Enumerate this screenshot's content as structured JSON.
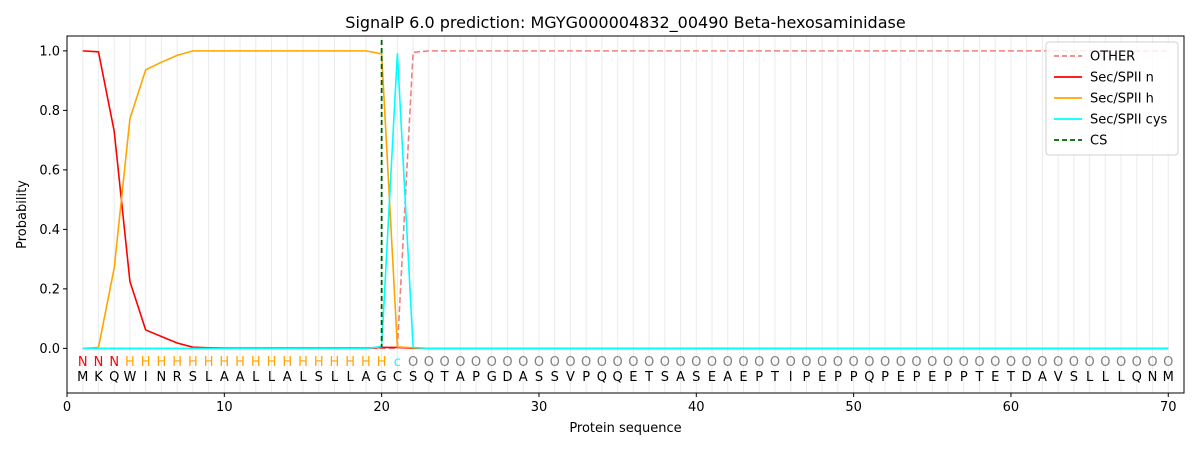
{
  "chart_data": {
    "type": "line",
    "title": "SignalP 6.0 prediction: MGYG000004832_00490 Beta-hexosaminidase",
    "xlabel": "Protein sequence",
    "ylabel": "Probability",
    "xlim": [
      0,
      71
    ],
    "ylim": [
      -0.15,
      1.05
    ],
    "xticks": [
      0,
      10,
      20,
      30,
      40,
      50,
      60,
      70
    ],
    "yticks": [
      0.0,
      0.2,
      0.4,
      0.6,
      0.8,
      1.0
    ],
    "ytick_labels": [
      "0.0",
      "0.2",
      "0.4",
      "0.6",
      "0.8",
      "1.0"
    ],
    "grid": "vertical lines at each residue",
    "legend_position": "top-right",
    "sequence": [
      "M",
      "K",
      "Q",
      "W",
      "I",
      "N",
      "R",
      "S",
      "L",
      "A",
      "A",
      "L",
      "L",
      "A",
      "L",
      "S",
      "L",
      "L",
      "A",
      "G",
      "C",
      "S",
      "Q",
      "T",
      "A",
      "P",
      "G",
      "D",
      "A",
      "S",
      "S",
      "V",
      "P",
      "Q",
      "Q",
      "E",
      "T",
      "S",
      "A",
      "S",
      "E",
      "A",
      "E",
      "P",
      "T",
      "I",
      "P",
      "E",
      "P",
      "P",
      "Q",
      "P",
      "E",
      "P",
      "E",
      "P",
      "P",
      "T",
      "E",
      "T",
      "D",
      "A",
      "V",
      "S",
      "L",
      "L",
      "L",
      "Q",
      "N",
      "M"
    ],
    "states": [
      "N",
      "N",
      "N",
      "H",
      "H",
      "H",
      "H",
      "H",
      "H",
      "H",
      "H",
      "H",
      "H",
      "H",
      "H",
      "H",
      "H",
      "H",
      "H",
      "H",
      "c",
      "O",
      "O",
      "O",
      "O",
      "O",
      "O",
      "O",
      "O",
      "O",
      "O",
      "O",
      "O",
      "O",
      "O",
      "O",
      "O",
      "O",
      "O",
      "O",
      "O",
      "O",
      "O",
      "O",
      "O",
      "O",
      "O",
      "O",
      "O",
      "O",
      "O",
      "O",
      "O",
      "O",
      "O",
      "O",
      "O",
      "O",
      "O",
      "O",
      "O",
      "O",
      "O",
      "O",
      "O",
      "O",
      "O",
      "O",
      "O",
      "O"
    ],
    "state_colors": {
      "N": "#ff0000",
      "H": "#ffa500",
      "c": "#00ffff",
      "O": "#808080"
    },
    "series": [
      {
        "name": "OTHER",
        "color": "#f08080",
        "dash": "dashed",
        "values": [
          0,
          0,
          0,
          0,
          0,
          0,
          0,
          0,
          0,
          0,
          0,
          0,
          0,
          0,
          0,
          0,
          0,
          0,
          0,
          0,
          0,
          0.995,
          1,
          1,
          1,
          1,
          1,
          1,
          1,
          1,
          1,
          1,
          1,
          1,
          1,
          1,
          1,
          1,
          1,
          1,
          1,
          1,
          1,
          1,
          1,
          1,
          1,
          1,
          1,
          1,
          1,
          1,
          1,
          1,
          1,
          1,
          1,
          1,
          1,
          1,
          1,
          1,
          1,
          1,
          1,
          1,
          1,
          1,
          1,
          1
        ]
      },
      {
        "name": "Sec/SPII n",
        "color": "#ff0000",
        "dash": "solid",
        "values": [
          1.0,
          0.997,
          0.73,
          0.225,
          0.062,
          0.04,
          0.018,
          0.004,
          0.002,
          0.001,
          0.001,
          0.001,
          0.001,
          0.001,
          0.001,
          0.001,
          0.001,
          0.001,
          0.001,
          0.003,
          0.003,
          0,
          0,
          0,
          0,
          0,
          0,
          0,
          0,
          0,
          0,
          0,
          0,
          0,
          0,
          0,
          0,
          0,
          0,
          0,
          0,
          0,
          0,
          0,
          0,
          0,
          0,
          0,
          0,
          0,
          0,
          0,
          0,
          0,
          0,
          0,
          0,
          0,
          0,
          0,
          0,
          0,
          0,
          0,
          0,
          0,
          0,
          0,
          0,
          0
        ]
      },
      {
        "name": "Sec/SPII h",
        "color": "#ffa500",
        "dash": "solid",
        "values": [
          0,
          0.003,
          0.27,
          0.772,
          0.936,
          0.962,
          0.985,
          1.0,
          1.0,
          1.0,
          1.0,
          1.0,
          1.0,
          1.0,
          1.0,
          1.0,
          1.0,
          1.0,
          1.0,
          0.99,
          0.005,
          0.002,
          0,
          0,
          0,
          0,
          0,
          0,
          0,
          0,
          0,
          0,
          0,
          0,
          0,
          0,
          0,
          0,
          0,
          0,
          0,
          0,
          0,
          0,
          0,
          0,
          0,
          0,
          0,
          0,
          0,
          0,
          0,
          0,
          0,
          0,
          0,
          0,
          0,
          0,
          0,
          0,
          0,
          0,
          0,
          0,
          0,
          0,
          0,
          0
        ]
      },
      {
        "name": "Sec/SPII cys",
        "color": "#00ffff",
        "dash": "solid",
        "values": [
          0,
          0,
          0,
          0,
          0,
          0,
          0,
          0,
          0,
          0,
          0,
          0,
          0,
          0,
          0,
          0,
          0,
          0,
          0,
          0.006,
          0.992,
          0.003,
          0,
          0,
          0,
          0,
          0,
          0,
          0,
          0,
          0,
          0,
          0,
          0,
          0,
          0,
          0,
          0,
          0,
          0,
          0,
          0,
          0,
          0,
          0,
          0,
          0,
          0,
          0,
          0,
          0,
          0,
          0,
          0,
          0,
          0,
          0,
          0,
          0,
          0,
          0,
          0,
          0,
          0,
          0,
          0,
          0,
          0,
          0,
          0
        ]
      },
      {
        "name": "CS",
        "color": "#006400",
        "dash": "dashed",
        "vline_x": 20
      }
    ]
  }
}
